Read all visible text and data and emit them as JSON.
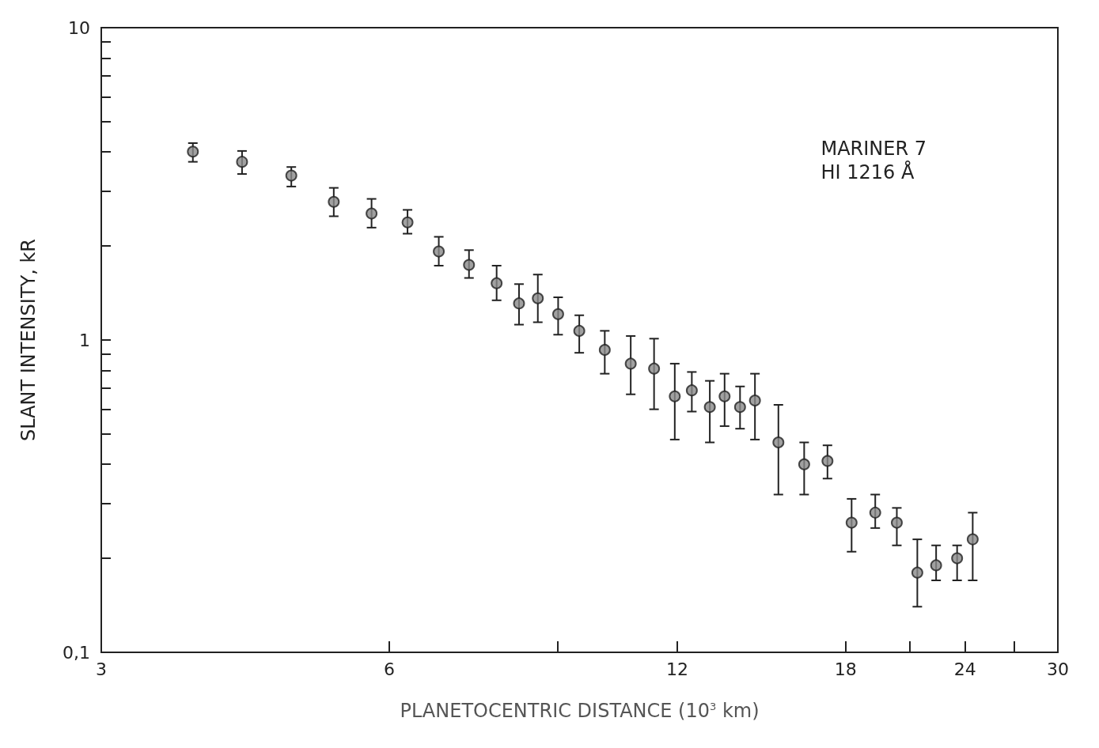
{
  "chart_data": {
    "type": "scatter",
    "xlabel": "PLANETOCENTRIC DISTANCE (10$^{3}$ km)",
    "ylabel": "SLANT INTENSITY, kR",
    "annotations": [
      "MARINER 7",
      "HI 1216 Å"
    ],
    "log": "xy",
    "grid": false,
    "marker": "circle",
    "xlim": [
      3,
      30
    ],
    "xticks": [
      3,
      6,
      {
        "value": 9,
        "label": null
      },
      12,
      18,
      {
        "value": 21,
        "label": null
      },
      24,
      {
        "value": 27,
        "label": null
      },
      30
    ],
    "ylim": [
      0.1,
      10
    ],
    "yticks": [
      {
        "value": 0.1,
        "label": "0,1"
      },
      {
        "value": 0.2,
        "label": null
      },
      {
        "value": 0.3,
        "label": null
      },
      {
        "value": 0.4,
        "label": null
      },
      {
        "value": 0.5,
        "label": null
      },
      {
        "value": 0.6,
        "label": null
      },
      {
        "value": 0.7,
        "label": null
      },
      {
        "value": 0.8,
        "label": null
      },
      {
        "value": 0.9,
        "label": null
      },
      1,
      {
        "value": 2,
        "label": null
      },
      {
        "value": 3,
        "label": null
      },
      {
        "value": 4,
        "label": null
      },
      {
        "value": 5,
        "label": null
      },
      {
        "value": 6,
        "label": null
      },
      {
        "value": 7,
        "label": null
      },
      {
        "value": 8,
        "label": null
      },
      {
        "value": 9,
        "label": null
      },
      10
    ],
    "series": [
      {
        "color": "#8a8a8a",
        "x": [
          3.74,
          4.21,
          4.74,
          5.25,
          5.75,
          6.27,
          6.76,
          7.27,
          7.77,
          8.2,
          8.58,
          9.01,
          9.48,
          10.08,
          10.73,
          11.35,
          11.93,
          12.43,
          12.98,
          13.45,
          13.96,
          14.47,
          15.31,
          16.29,
          17.23,
          18.26,
          19.33,
          20.36,
          21.39,
          22.38,
          23.54,
          24.44
        ],
        "values": [
          4.01,
          3.72,
          3.36,
          2.77,
          2.54,
          2.38,
          1.92,
          1.74,
          1.52,
          1.31,
          1.36,
          1.21,
          1.07,
          0.93,
          0.84,
          0.81,
          0.66,
          0.69,
          0.61,
          0.66,
          0.61,
          0.64,
          0.47,
          0.4,
          0.41,
          0.26,
          0.28,
          0.26,
          0.18,
          0.19,
          0.2,
          0.23
        ],
        "errors": [
          [
            3.72,
            4.27
          ],
          [
            3.4,
            4.03
          ],
          [
            3.1,
            3.58
          ],
          [
            2.49,
            3.07
          ],
          [
            2.29,
            2.83
          ],
          [
            2.19,
            2.61
          ],
          [
            1.73,
            2.14
          ],
          [
            1.58,
            1.94
          ],
          [
            1.34,
            1.73
          ],
          [
            1.12,
            1.51
          ],
          [
            1.14,
            1.62
          ],
          [
            1.04,
            1.37
          ],
          [
            0.91,
            1.2
          ],
          [
            0.78,
            1.07
          ],
          [
            0.67,
            1.03
          ],
          [
            0.6,
            1.01
          ],
          [
            0.48,
            0.84
          ],
          [
            0.59,
            0.79
          ],
          [
            0.47,
            0.74
          ],
          [
            0.53,
            0.78
          ],
          [
            0.52,
            0.71
          ],
          [
            0.48,
            0.78
          ],
          [
            0.32,
            0.62
          ],
          [
            0.32,
            0.47
          ],
          [
            0.36,
            0.46
          ],
          [
            0.21,
            0.31
          ],
          [
            0.25,
            0.32
          ],
          [
            0.22,
            0.29
          ],
          [
            0.14,
            0.23
          ],
          [
            0.17,
            0.22
          ],
          [
            0.17,
            0.22
          ],
          [
            0.17,
            0.28
          ]
        ]
      }
    ]
  }
}
